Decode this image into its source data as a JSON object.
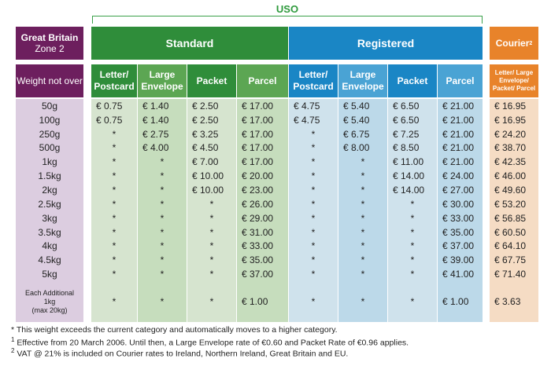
{
  "uso_label": "USO",
  "zone": {
    "title": "Great Britain",
    "subtitle": "Zone 2"
  },
  "weight_header": "Weight not over",
  "groups": {
    "standard": "Standard",
    "registered": "Registered",
    "courier": "Courier",
    "courier_sup": "2"
  },
  "subheaders": {
    "letter": "Letter/ Postcard",
    "large": "Large Envelope",
    "packet": "Packet",
    "parcel": "Parcel",
    "courier": "Letter/ Large Envelope/ Packet/ Parcel"
  },
  "colors": {
    "uso": "#2e9a3c",
    "zone": "#6d1f5e",
    "standard": "#2f8d3a",
    "registered": "#1a86c5",
    "courier": "#e8832a"
  },
  "rows": [
    {
      "weight": "50g",
      "values": [
        "€ 0.75",
        "€ 1.40",
        "€ 2.50",
        "€ 17.00",
        "€ 4.75",
        "€ 5.40",
        "€ 6.50",
        "€ 21.00",
        "€ 16.95"
      ]
    },
    {
      "weight": "100g",
      "values": [
        "€ 0.75",
        "€ 1.40",
        "€ 2.50",
        "€ 17.00",
        "€ 4.75",
        "€ 5.40",
        "€ 6.50",
        "€ 21.00",
        "€ 16.95"
      ]
    },
    {
      "weight": "250g",
      "values": [
        "*",
        "€ 2.75",
        "€ 3.25",
        "€ 17.00",
        "*",
        "€ 6.75",
        "€ 7.25",
        "€ 21.00",
        "€ 24.20"
      ]
    },
    {
      "weight": "500g",
      "values": [
        "*",
        "€ 4.00",
        "€ 4.50",
        "€ 17.00",
        "*",
        "€ 8.00",
        "€ 8.50",
        "€ 21.00",
        "€ 38.70"
      ]
    },
    {
      "weight": "1kg",
      "values": [
        "*",
        "*",
        "€ 7.00",
        "€ 17.00",
        "*",
        "*",
        "€ 11.00",
        "€ 21.00",
        "€ 42.35"
      ]
    },
    {
      "weight": "1.5kg",
      "values": [
        "*",
        "*",
        "€ 10.00",
        "€ 20.00",
        "*",
        "*",
        "€ 14.00",
        "€ 24.00",
        "€ 46.00"
      ]
    },
    {
      "weight": "2kg",
      "values": [
        "*",
        "*",
        "€ 10.00",
        "€ 23.00",
        "*",
        "*",
        "€ 14.00",
        "€ 27.00",
        "€ 49.60"
      ]
    },
    {
      "weight": "2.5kg",
      "values": [
        "*",
        "*",
        "*",
        "€ 26.00",
        "*",
        "*",
        "*",
        "€ 30.00",
        "€ 53.20"
      ]
    },
    {
      "weight": "3kg",
      "values": [
        "*",
        "*",
        "*",
        "€ 29.00",
        "*",
        "*",
        "*",
        "€ 33.00",
        "€ 56.85"
      ]
    },
    {
      "weight": "3.5kg",
      "values": [
        "*",
        "*",
        "*",
        "€ 31.00",
        "*",
        "*",
        "*",
        "€ 35.00",
        "€ 60.50"
      ]
    },
    {
      "weight": "4kg",
      "values": [
        "*",
        "*",
        "*",
        "€ 33.00",
        "*",
        "*",
        "*",
        "€ 37.00",
        "€ 64.10"
      ]
    },
    {
      "weight": "4.5kg",
      "values": [
        "*",
        "*",
        "*",
        "€ 35.00",
        "*",
        "*",
        "*",
        "€ 39.00",
        "€ 67.75"
      ]
    },
    {
      "weight": "5kg",
      "values": [
        "*",
        "*",
        "*",
        "€ 37.00",
        "*",
        "*",
        "*",
        "€ 41.00",
        "€ 71.40"
      ]
    }
  ],
  "additional": {
    "label_1": "Each Additional",
    "label_2": "1kg",
    "label_3": "(max 20kg)",
    "values": [
      "*",
      "*",
      "*",
      "€ 1.00",
      "*",
      "*",
      "*",
      "€ 1.00",
      "€ 3.63"
    ]
  },
  "footnotes": {
    "star": "* This weight exceeds the current category and automatically moves to a higher category.",
    "note1_marker": "1",
    "note1": "Effective from 20 March 2006. Until then, a Large Envelope rate of €0.60 and Packet Rate of €0.96 applies.",
    "note2_marker": "2",
    "note2": "VAT @ 21% is included on Courier rates to Ireland, Northern Ireland, Great Britain and EU."
  }
}
